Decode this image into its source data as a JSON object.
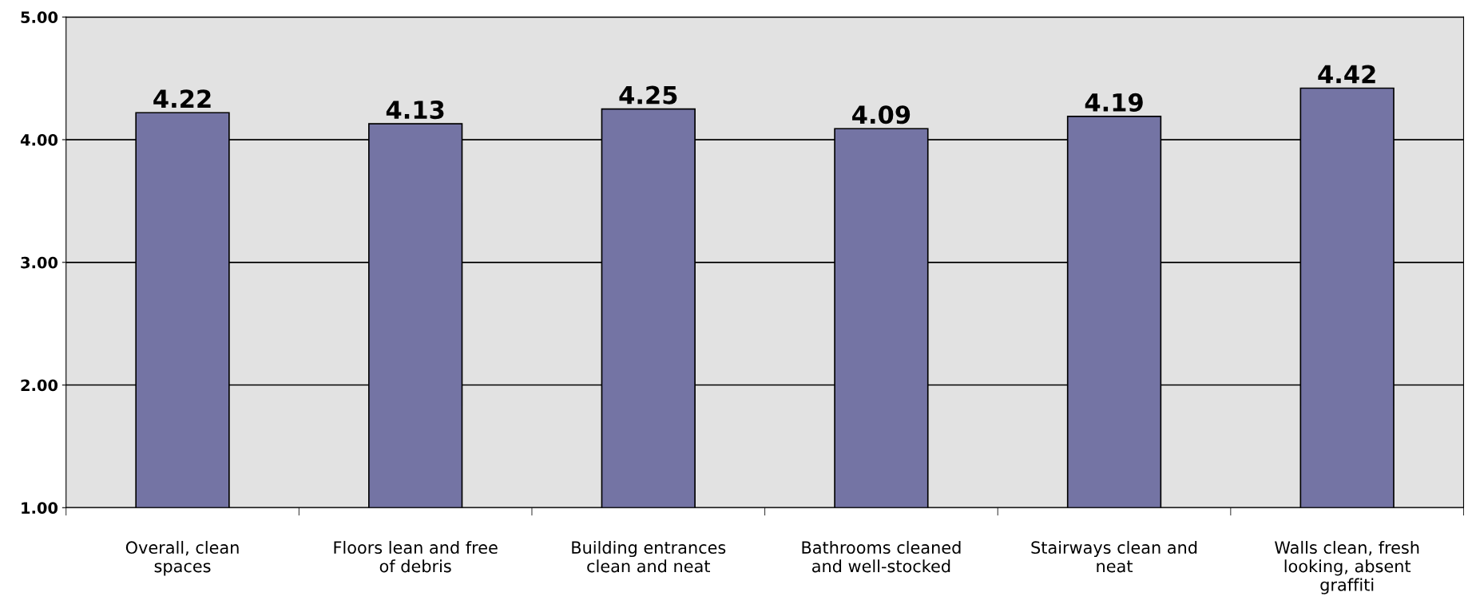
{
  "chart_data": {
    "type": "bar",
    "categories": [
      "Overall, clean\nspaces",
      "Floors lean and free\nof debris",
      "Building entrances\nclean and neat",
      "Bathrooms cleaned\nand well-stocked",
      "Stairways clean and\nneat",
      "Walls clean, fresh\nlooking, absent\ngraffiti"
    ],
    "values": [
      4.22,
      4.13,
      4.25,
      4.09,
      4.19,
      4.42
    ],
    "color": "#7474a4",
    "data_labels": true,
    "ylim": [
      1,
      5
    ],
    "yticks": [
      {
        "value": 1,
        "label": "1.00"
      },
      {
        "value": 2,
        "label": "2.00"
      },
      {
        "value": 3,
        "label": "3.00"
      },
      {
        "value": 4,
        "label": "4.00"
      },
      {
        "value": 5,
        "label": "5.00"
      }
    ],
    "grid": "y",
    "legend": false
  }
}
